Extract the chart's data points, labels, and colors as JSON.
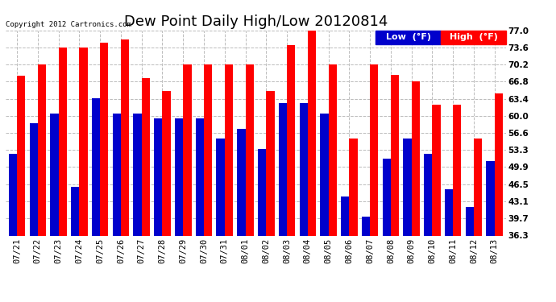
{
  "title": "Dew Point Daily High/Low 20120814",
  "copyright": "Copyright 2012 Cartronics.com",
  "dates": [
    "07/21",
    "07/22",
    "07/23",
    "07/24",
    "07/25",
    "07/26",
    "07/27",
    "07/28",
    "07/29",
    "07/30",
    "07/31",
    "08/01",
    "08/02",
    "08/03",
    "08/04",
    "08/05",
    "08/06",
    "08/07",
    "08/08",
    "08/09",
    "08/10",
    "08/11",
    "08/12",
    "08/13"
  ],
  "high": [
    68.0,
    70.2,
    73.6,
    73.6,
    74.5,
    75.2,
    67.5,
    65.0,
    70.2,
    70.2,
    70.2,
    70.2,
    65.0,
    74.0,
    77.0,
    70.2,
    55.5,
    70.2,
    68.2,
    66.8,
    62.2,
    62.2,
    55.5,
    64.4
  ],
  "low": [
    52.5,
    58.5,
    60.5,
    46.0,
    63.5,
    60.5,
    60.5,
    59.5,
    59.5,
    59.5,
    55.5,
    57.5,
    53.5,
    62.5,
    62.5,
    60.5,
    44.0,
    40.0,
    51.5,
    55.5,
    52.5,
    45.5,
    42.0,
    51.0
  ],
  "high_color": "#ff0000",
  "low_color": "#0000cc",
  "bg_color": "#ffffff",
  "plot_bg_color": "#ffffff",
  "grid_color": "#bbbbbb",
  "yticks": [
    36.3,
    39.7,
    43.1,
    46.5,
    49.9,
    53.3,
    56.6,
    60.0,
    63.4,
    66.8,
    70.2,
    73.6,
    77.0
  ],
  "ylim": [
    36.3,
    77.0
  ],
  "bar_width": 0.4,
  "title_fontsize": 13,
  "tick_fontsize": 7.5,
  "legend_fontsize": 8
}
